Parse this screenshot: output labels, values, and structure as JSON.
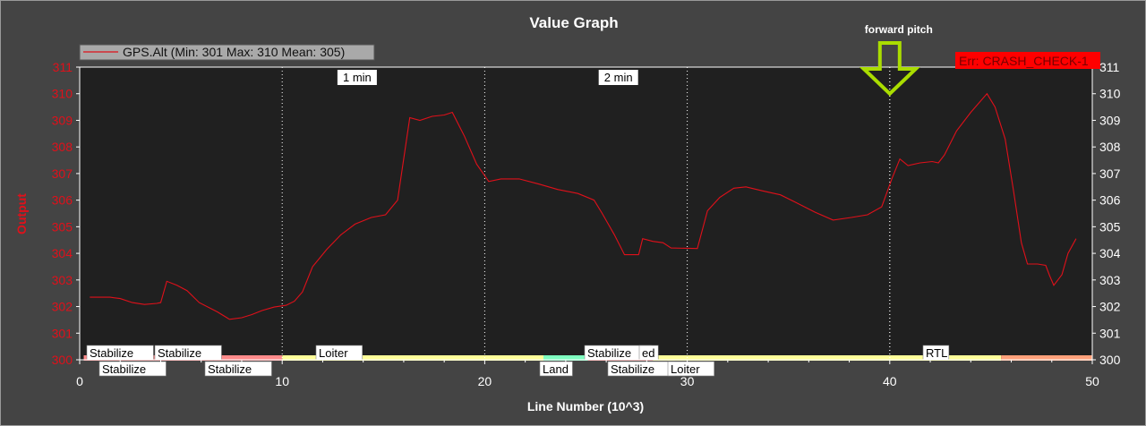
{
  "chart_data": {
    "type": "line",
    "title": "Value Graph",
    "xlabel": "Line Number (10^3)",
    "ylabel": "Output",
    "xlim": [
      0,
      50
    ],
    "ylim": [
      300,
      311
    ],
    "xticks": [
      "0",
      "10",
      "20",
      "30",
      "40",
      "50"
    ],
    "yticks": [
      "300",
      "301",
      "302",
      "303",
      "304",
      "305",
      "306",
      "307",
      "308",
      "309",
      "310",
      "311"
    ],
    "grid": false,
    "legend": {
      "position": "top-left",
      "entries": [
        "GPS.Alt (Min: 301 Max: 310 Mean: 305)"
      ]
    },
    "series": [
      {
        "name": "GPS.Alt (Min: 301 Max: 310 Mean: 305)",
        "color": "#e0101a",
        "points": [
          [
            0.5,
            302.35
          ],
          [
            1.5,
            302.35
          ],
          [
            2.0,
            302.3
          ],
          [
            2.6,
            302.15
          ],
          [
            3.2,
            302.08
          ],
          [
            3.8,
            302.12
          ],
          [
            4.0,
            302.15
          ],
          [
            4.3,
            302.95
          ],
          [
            4.8,
            302.8
          ],
          [
            5.3,
            302.6
          ],
          [
            5.9,
            302.15
          ],
          [
            6.8,
            301.8
          ],
          [
            7.4,
            301.52
          ],
          [
            8.0,
            301.58
          ],
          [
            8.5,
            301.7
          ],
          [
            9.0,
            301.85
          ],
          [
            9.6,
            301.98
          ],
          [
            10.2,
            302.05
          ],
          [
            10.6,
            302.2
          ],
          [
            11.0,
            302.55
          ],
          [
            11.5,
            303.5
          ],
          [
            12.2,
            304.15
          ],
          [
            12.9,
            304.7
          ],
          [
            13.6,
            305.1
          ],
          [
            14.4,
            305.35
          ],
          [
            15.1,
            305.45
          ],
          [
            15.7,
            306.0
          ],
          [
            16.3,
            309.1
          ],
          [
            16.8,
            309.0
          ],
          [
            17.4,
            309.15
          ],
          [
            18.0,
            309.2
          ],
          [
            18.4,
            309.3
          ],
          [
            19.0,
            308.4
          ],
          [
            19.6,
            307.35
          ],
          [
            20.2,
            306.7
          ],
          [
            20.8,
            306.8
          ],
          [
            21.7,
            306.8
          ],
          [
            22.7,
            306.6
          ],
          [
            23.6,
            306.4
          ],
          [
            24.6,
            306.25
          ],
          [
            25.4,
            306.0
          ],
          [
            25.8,
            305.5
          ],
          [
            26.4,
            304.7
          ],
          [
            26.9,
            303.95
          ],
          [
            27.6,
            303.95
          ],
          [
            27.8,
            304.55
          ],
          [
            28.3,
            304.45
          ],
          [
            28.8,
            304.4
          ],
          [
            29.2,
            304.2
          ],
          [
            30.5,
            304.18
          ],
          [
            31.0,
            305.6
          ],
          [
            31.6,
            306.1
          ],
          [
            32.3,
            306.45
          ],
          [
            32.9,
            306.5
          ],
          [
            33.7,
            306.35
          ],
          [
            34.6,
            306.2
          ],
          [
            35.4,
            305.9
          ],
          [
            36.3,
            305.55
          ],
          [
            37.2,
            305.25
          ],
          [
            38.1,
            305.35
          ],
          [
            38.9,
            305.45
          ],
          [
            39.6,
            305.75
          ],
          [
            40.1,
            306.8
          ],
          [
            40.5,
            307.55
          ],
          [
            40.9,
            307.3
          ],
          [
            41.5,
            307.4
          ],
          [
            42.1,
            307.45
          ],
          [
            42.4,
            307.4
          ],
          [
            42.7,
            307.7
          ],
          [
            43.3,
            308.6
          ],
          [
            44.0,
            309.3
          ],
          [
            44.8,
            310.0
          ],
          [
            45.2,
            309.5
          ],
          [
            45.7,
            308.3
          ],
          [
            46.1,
            306.4
          ],
          [
            46.5,
            304.4
          ],
          [
            46.8,
            303.6
          ],
          [
            47.3,
            303.6
          ],
          [
            47.7,
            303.55
          ],
          [
            47.9,
            303.15
          ],
          [
            48.1,
            302.8
          ],
          [
            48.5,
            303.2
          ],
          [
            48.8,
            304.0
          ],
          [
            49.2,
            304.55
          ]
        ]
      }
    ],
    "time_markers": [
      {
        "x": 13.7,
        "label": "1 min"
      },
      {
        "x": 26.6,
        "label": "2 min"
      }
    ],
    "vertical_lines_x": [
      10.0,
      20.0,
      30.0,
      40.0
    ],
    "annotation": {
      "label": "forward pitch",
      "x": 40.0,
      "y": 310.0,
      "arrow_color": "#aadd00"
    },
    "error_box": {
      "label": "Err: CRASH_CHECK-1",
      "color": "#ff0000"
    },
    "flight_modes": [
      {
        "label": "Stabilize",
        "start": 0.2,
        "end": 3.7,
        "color": "#ff8a8a"
      },
      {
        "label": "Stabilize",
        "start": 3.7,
        "end": 6.6,
        "color": "#ff8a8a"
      },
      {
        "label": "Stabilize",
        "start": 6.6,
        "end": 10.0,
        "color": "#ff8a8a"
      },
      {
        "label": "Loiter",
        "start": 10.0,
        "end": 22.9,
        "color": "#ffff99"
      },
      {
        "label": "Land",
        "start": 22.9,
        "end": 25.1,
        "color": "#7fffc0"
      },
      {
        "label": "Stabilize",
        "start": 25.1,
        "end": 26.6,
        "color": "#ff8a8a"
      },
      {
        "label": "ed",
        "start": 26.6,
        "end": 28.3,
        "color": "#ff8a8a"
      },
      {
        "label": "Stabilize",
        "start": 26.6,
        "end": 28.3,
        "color": "#ff8a8a"
      },
      {
        "label": "Loiter",
        "start": 28.3,
        "end": 45.5,
        "color": "#ffff99"
      },
      {
        "label": "RTL",
        "start": 45.5,
        "end": 50.0,
        "color": "#ffa07a"
      }
    ]
  }
}
